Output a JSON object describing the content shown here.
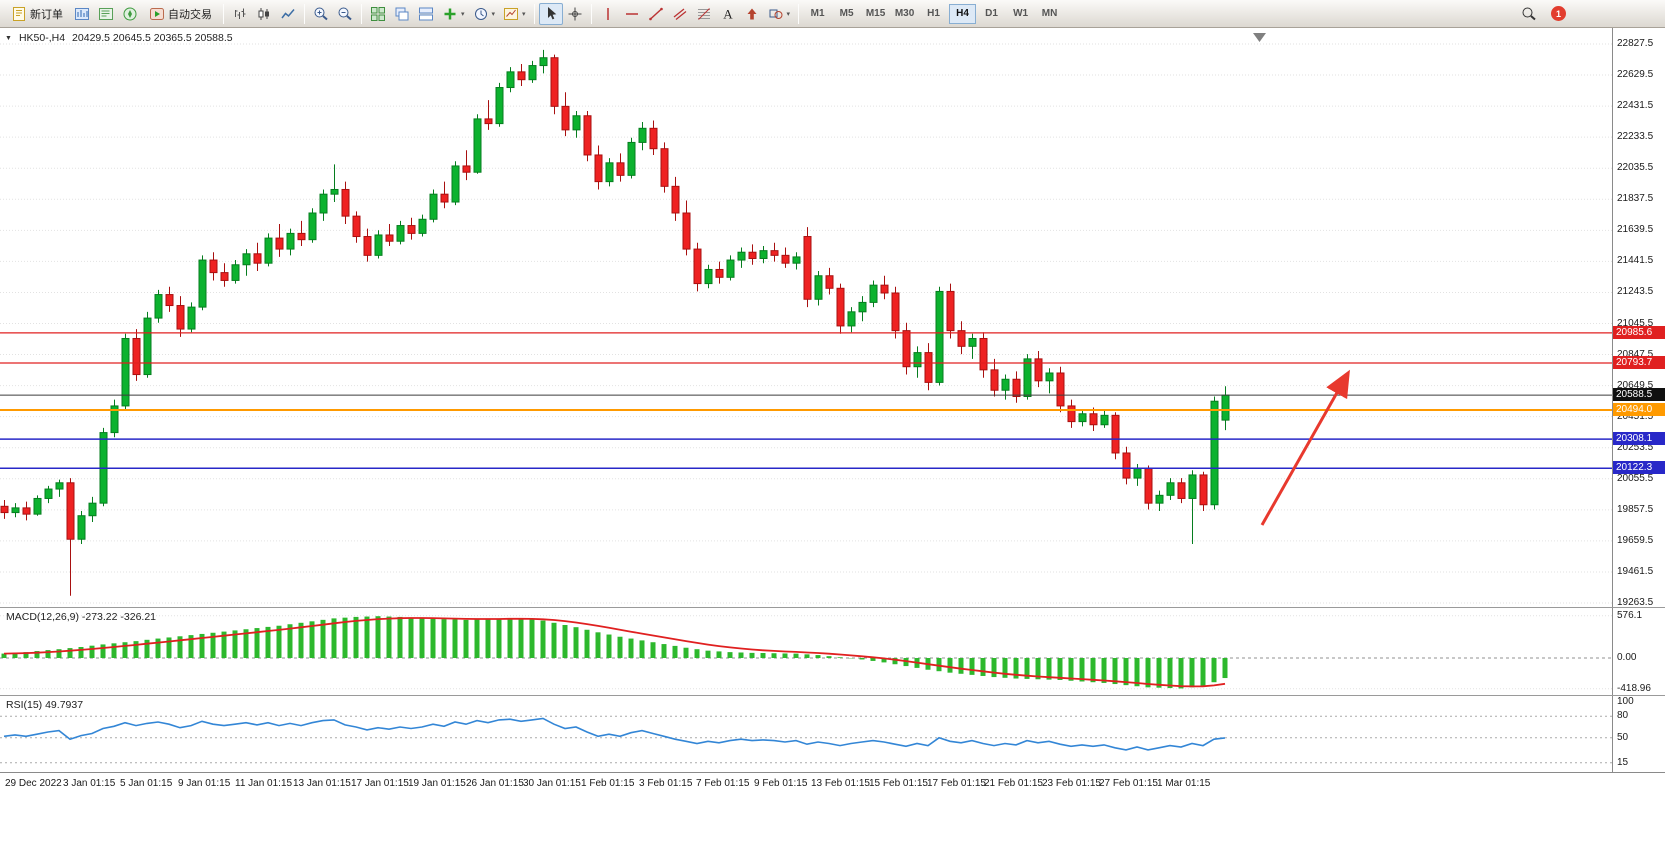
{
  "toolbar": {
    "new_order_label": "新订单",
    "autotrade_label": "自动交易",
    "buttons": [
      {
        "name": "new-order",
        "label": "新订单"
      },
      {
        "name": "charts"
      },
      {
        "name": "market-watch"
      },
      {
        "name": "navigator"
      },
      {
        "name": "autotrade",
        "label": "自动交易"
      },
      {
        "sep": true
      },
      {
        "name": "bars-chart"
      },
      {
        "name": "candles-chart"
      },
      {
        "name": "line-chart"
      },
      {
        "sep": true
      },
      {
        "name": "zoom-in"
      },
      {
        "name": "zoom-out"
      },
      {
        "sep": true
      },
      {
        "name": "tile-windows"
      },
      {
        "name": "cascade-windows"
      },
      {
        "name": "arrange-windows"
      },
      {
        "name": "add-indicator",
        "dropdown": true
      },
      {
        "name": "periods",
        "dropdown": true
      },
      {
        "name": "templates",
        "dropdown": true
      },
      {
        "sep": true
      },
      {
        "name": "cursor",
        "active": true
      },
      {
        "name": "crosshair"
      },
      {
        "sep": true
      },
      {
        "name": "vertical-line"
      },
      {
        "name": "horizontal-line"
      },
      {
        "name": "trend-line"
      },
      {
        "name": "channel"
      },
      {
        "name": "fibonacci"
      },
      {
        "name": "text"
      },
      {
        "name": "arrows-tool"
      },
      {
        "name": "shapes",
        "dropdown": true
      }
    ],
    "timeframes": [
      "M1",
      "M5",
      "M15",
      "M30",
      "H1",
      "H4",
      "D1",
      "W1",
      "MN"
    ],
    "active_timeframe": "H4",
    "notification_badge": "1"
  },
  "chart_data": {
    "type": "candlestick",
    "symbol": "HK50-,H4",
    "ohlc_display": "20429.5 20645.5 20365.5 20588.5",
    "current_ohlc": {
      "open": 20429.5,
      "high": 20645.5,
      "low": 20365.5,
      "close": 20588.5
    },
    "y_range": [
      19263.5,
      22827.5
    ],
    "y_ticks": [
      "22827.5",
      "22629.5",
      "22431.5",
      "22233.5",
      "22035.5",
      "21837.5",
      "21639.5",
      "21441.5",
      "21243.5",
      "21045.5",
      "20847.5",
      "20649.5",
      "20451.5",
      "20253.5",
      "20055.5",
      "19857.5",
      "19659.5",
      "19461.5",
      "19263.5"
    ],
    "x_labels": [
      "29 Dec 2022",
      "3 Jan 01:15",
      "5 Jan 01:15",
      "9 Jan 01:15",
      "11 Jan 01:15",
      "13 Jan 01:15",
      "17 Jan 01:15",
      "19 Jan 01:15",
      "26 Jan 01:15",
      "30 Jan 01:15",
      "1 Feb 01:15",
      "3 Feb 01:15",
      "7 Feb 01:15",
      "9 Feb 01:15",
      "13 Feb 01:15",
      "15 Feb 01:15",
      "17 Feb 01:15",
      "21 Feb 01:15",
      "23 Feb 01:15",
      "27 Feb 01:15",
      "1 Mar 01:15"
    ],
    "colors": {
      "up": "#0cb22f",
      "up_edge": "#067d1f",
      "down": "#ee2222",
      "down_edge": "#a81010"
    },
    "arrow_color": "#e8392e",
    "levels": [
      {
        "price": 20985.6,
        "label": "20985.6",
        "color": "#e02020",
        "width": 1.2
      },
      {
        "price": 20793.7,
        "label": "20793.7",
        "color": "#e02020",
        "width": 1.2
      },
      {
        "price": 20588.5,
        "label": "20588.5",
        "color": "#3c3c3c",
        "width": 1,
        "tag_color": "#101010"
      },
      {
        "price": 20494.0,
        "label": "20494.0",
        "color": "#ff9a00",
        "width": 2
      },
      {
        "price": 20308.1,
        "label": "20308.1",
        "color": "#2828c8",
        "width": 1.5
      },
      {
        "price": 20122.3,
        "label": "20122.3",
        "color": "#2828c8",
        "width": 1.5
      }
    ],
    "candles": [
      [
        19880,
        19920,
        19800,
        19840
      ],
      [
        19840,
        19900,
        19810,
        19870
      ],
      [
        19870,
        19910,
        19790,
        19830
      ],
      [
        19830,
        19950,
        19820,
        19930
      ],
      [
        19930,
        20010,
        19900,
        19990
      ],
      [
        19990,
        20050,
        19940,
        20030
      ],
      [
        20030,
        20060,
        19310,
        19670
      ],
      [
        19670,
        19850,
        19640,
        19820
      ],
      [
        19820,
        19940,
        19780,
        19900
      ],
      [
        19900,
        20380,
        19880,
        20350
      ],
      [
        20350,
        20560,
        20320,
        20520
      ],
      [
        20520,
        20980,
        20500,
        20950
      ],
      [
        20950,
        21010,
        20680,
        20720
      ],
      [
        20720,
        21120,
        20700,
        21080
      ],
      [
        21080,
        21260,
        21050,
        21230
      ],
      [
        21230,
        21280,
        21120,
        21160
      ],
      [
        21160,
        21220,
        20960,
        21010
      ],
      [
        21010,
        21180,
        20990,
        21150
      ],
      [
        21150,
        21480,
        21130,
        21450
      ],
      [
        21450,
        21500,
        21320,
        21370
      ],
      [
        21370,
        21430,
        21280,
        21320
      ],
      [
        21320,
        21450,
        21300,
        21420
      ],
      [
        21420,
        21520,
        21350,
        21490
      ],
      [
        21490,
        21560,
        21380,
        21430
      ],
      [
        21430,
        21620,
        21410,
        21590
      ],
      [
        21590,
        21680,
        21470,
        21520
      ],
      [
        21520,
        21650,
        21480,
        21620
      ],
      [
        21620,
        21700,
        21540,
        21580
      ],
      [
        21580,
        21780,
        21560,
        21750
      ],
      [
        21750,
        21900,
        21700,
        21870
      ],
      [
        21870,
        22060,
        21820,
        21900
      ],
      [
        21900,
        21950,
        21680,
        21730
      ],
      [
        21730,
        21760,
        21560,
        21600
      ],
      [
        21600,
        21650,
        21440,
        21480
      ],
      [
        21480,
        21640,
        21460,
        21610
      ],
      [
        21610,
        21680,
        21540,
        21570
      ],
      [
        21570,
        21700,
        21550,
        21670
      ],
      [
        21670,
        21720,
        21580,
        21620
      ],
      [
        21620,
        21740,
        21600,
        21710
      ],
      [
        21710,
        21900,
        21690,
        21870
      ],
      [
        21870,
        21950,
        21780,
        21820
      ],
      [
        21820,
        22080,
        21800,
        22050
      ],
      [
        22050,
        22150,
        21960,
        22010
      ],
      [
        22010,
        22380,
        22000,
        22350
      ],
      [
        22350,
        22470,
        22280,
        22320
      ],
      [
        22320,
        22580,
        22300,
        22550
      ],
      [
        22550,
        22680,
        22520,
        22650
      ],
      [
        22650,
        22700,
        22560,
        22600
      ],
      [
        22600,
        22720,
        22580,
        22690
      ],
      [
        22690,
        22790,
        22640,
        22740
      ],
      [
        22740,
        22760,
        22380,
        22430
      ],
      [
        22430,
        22520,
        22240,
        22280
      ],
      [
        22280,
        22400,
        22230,
        22370
      ],
      [
        22370,
        22400,
        22080,
        22120
      ],
      [
        22120,
        22180,
        21900,
        21950
      ],
      [
        21950,
        22100,
        21920,
        22070
      ],
      [
        22070,
        22130,
        21950,
        21990
      ],
      [
        21990,
        22230,
        21970,
        22200
      ],
      [
        22200,
        22330,
        22150,
        22290
      ],
      [
        22290,
        22340,
        22120,
        22160
      ],
      [
        22160,
        22200,
        21880,
        21920
      ],
      [
        21920,
        21980,
        21700,
        21750
      ],
      [
        21750,
        21830,
        21480,
        21520
      ],
      [
        21520,
        21560,
        21250,
        21300
      ],
      [
        21300,
        21420,
        21270,
        21390
      ],
      [
        21390,
        21440,
        21300,
        21340
      ],
      [
        21340,
        21480,
        21320,
        21450
      ],
      [
        21450,
        21530,
        21400,
        21500
      ],
      [
        21500,
        21550,
        21420,
        21460
      ],
      [
        21460,
        21540,
        21430,
        21510
      ],
      [
        21510,
        21560,
        21440,
        21480
      ],
      [
        21480,
        21530,
        21400,
        21430
      ],
      [
        21430,
        21500,
        21390,
        21470
      ],
      [
        21600,
        21660,
        21150,
        21200
      ],
      [
        21200,
        21380,
        21160,
        21350
      ],
      [
        21350,
        21400,
        21230,
        21270
      ],
      [
        21270,
        21300,
        20980,
        21030
      ],
      [
        21030,
        21150,
        20990,
        21120
      ],
      [
        21120,
        21220,
        21060,
        21180
      ],
      [
        21180,
        21320,
        21150,
        21290
      ],
      [
        21290,
        21350,
        21200,
        21240
      ],
      [
        21240,
        21280,
        20950,
        21000
      ],
      [
        21000,
        21050,
        20720,
        20770
      ],
      [
        20770,
        20900,
        20700,
        20860
      ],
      [
        20860,
        20920,
        20620,
        20670
      ],
      [
        20670,
        21280,
        20650,
        21250
      ],
      [
        21250,
        21300,
        20950,
        21000
      ],
      [
        21000,
        21060,
        20850,
        20900
      ],
      [
        20900,
        20980,
        20820,
        20950
      ],
      [
        20950,
        20990,
        20700,
        20750
      ],
      [
        20750,
        20820,
        20580,
        20620
      ],
      [
        20620,
        20720,
        20560,
        20690
      ],
      [
        20690,
        20740,
        20540,
        20580
      ],
      [
        20580,
        20850,
        20560,
        20820
      ],
      [
        20820,
        20870,
        20640,
        20680
      ],
      [
        20680,
        20760,
        20600,
        20730
      ],
      [
        20730,
        20770,
        20480,
        20520
      ],
      [
        20520,
        20560,
        20380,
        20420
      ],
      [
        20420,
        20500,
        20390,
        20470
      ],
      [
        20470,
        20510,
        20360,
        20400
      ],
      [
        20400,
        20490,
        20380,
        20460
      ],
      [
        20460,
        20480,
        20180,
        20220
      ],
      [
        20220,
        20260,
        20020,
        20060
      ],
      [
        20060,
        20150,
        20010,
        20120
      ],
      [
        20120,
        20140,
        19860,
        19900
      ],
      [
        19900,
        19980,
        19850,
        19950
      ],
      [
        19950,
        20060,
        19920,
        20030
      ],
      [
        20030,
        20060,
        19900,
        19930
      ],
      [
        19930,
        20110,
        19640,
        20080
      ],
      [
        20080,
        20100,
        19850,
        19890
      ],
      [
        19890,
        20580,
        19860,
        20550
      ],
      [
        20429.5,
        20645.5,
        20365.5,
        20588.5
      ]
    ],
    "macd": {
      "label": "MACD(12,26,9) -273.22 -326.21",
      "scale": [
        "576.1",
        "0.00",
        "-418.96"
      ],
      "histogram_color": "#2db82d",
      "signal_color": "#e02020",
      "histogram": [
        60,
        70,
        80,
        95,
        108,
        120,
        135,
        150,
        168,
        185,
        200,
        215,
        230,
        248,
        265,
        280,
        296,
        312,
        328,
        344,
        360,
        376,
        392,
        408,
        424,
        440,
        460,
        480,
        500,
        520,
        540,
        550,
        560,
        565,
        570,
        565,
        560,
        552,
        545,
        538,
        530,
        525,
        520,
        525,
        530,
        535,
        540,
        535,
        530,
        510,
        480,
        450,
        420,
        385,
        350,
        320,
        290,
        265,
        240,
        215,
        190,
        165,
        140,
        120,
        100,
        90,
        80,
        75,
        70,
        68,
        65,
        62,
        60,
        50,
        40,
        25,
        10,
        -5,
        -20,
        -40,
        -60,
        -85,
        -110,
        -135,
        -160,
        -180,
        -200,
        -215,
        -230,
        -245,
        -260,
        -270,
        -280,
        -285,
        -290,
        -295,
        -300,
        -310,
        -320,
        -330,
        -340,
        -355,
        -370,
        -385,
        -400,
        -405,
        -410,
        -415,
        -400,
        -380,
        -330,
        -273.22
      ]
    },
    "rsi": {
      "label": "RSI(15) 49.7937",
      "scale": [
        "100",
        "80",
        "50",
        "15"
      ],
      "line_color": "#3386d6",
      "values": [
        52,
        54,
        52,
        55,
        58,
        60,
        48,
        53,
        56,
        63,
        66,
        71,
        67,
        70,
        72,
        69,
        64,
        67,
        73,
        69,
        67,
        69,
        71,
        68,
        71,
        67,
        70,
        67,
        71,
        74,
        75,
        68,
        65,
        61,
        64,
        62,
        65,
        63,
        65,
        69,
        66,
        72,
        69,
        74,
        71,
        75,
        76,
        73,
        75,
        77,
        69,
        63,
        65,
        58,
        52,
        55,
        52,
        57,
        60,
        56,
        52,
        48,
        45,
        42,
        45,
        43,
        46,
        48,
        46,
        47,
        46,
        44,
        46,
        41,
        44,
        42,
        39,
        42,
        44,
        46,
        44,
        41,
        38,
        42,
        39,
        50,
        45,
        43,
        46,
        42,
        39,
        42,
        40,
        46,
        43,
        45,
        41,
        38,
        40,
        38,
        40,
        36,
        33,
        37,
        33,
        36,
        39,
        37,
        42,
        39,
        48,
        49.79
      ]
    }
  }
}
